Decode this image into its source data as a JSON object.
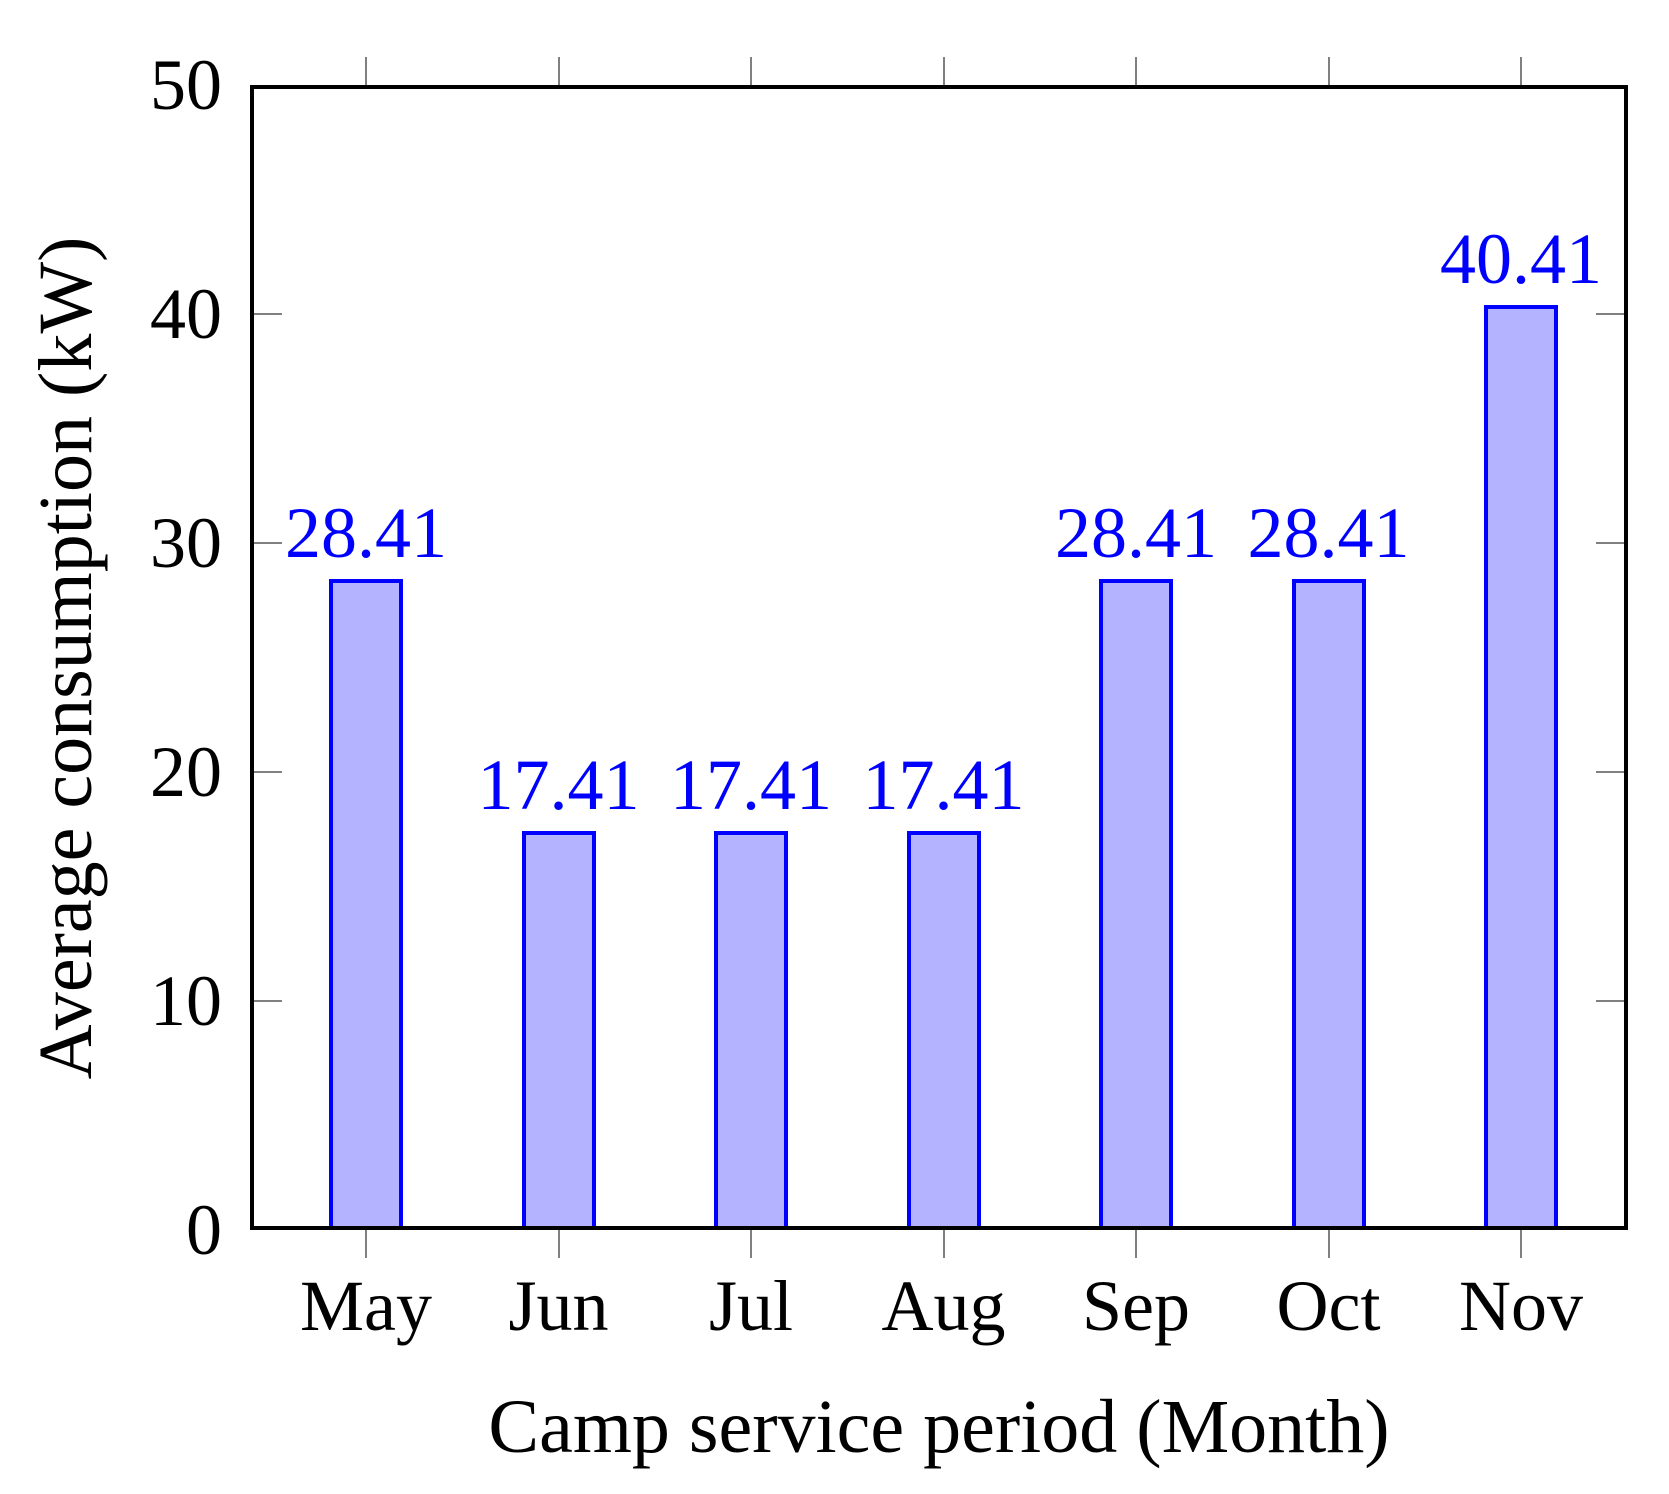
{
  "chart_data": {
    "type": "bar",
    "title": "",
    "xlabel": "Camp service period (Month)",
    "ylabel": "Average consumption (kW)",
    "categories": [
      "May",
      "Jun",
      "Jul",
      "Aug",
      "Sep",
      "Oct",
      "Nov"
    ],
    "values": [
      28.41,
      17.41,
      17.41,
      17.41,
      28.41,
      28.41,
      40.41
    ],
    "value_labels": [
      "28.41",
      "17.41",
      "17.41",
      "17.41",
      "28.41",
      "28.41",
      "40.41"
    ],
    "ylim": [
      0,
      50
    ],
    "yticks": [
      0,
      10,
      20,
      30,
      40,
      50
    ],
    "ytick_labels": [
      "0",
      "10",
      "20",
      "30",
      "40",
      "50"
    ],
    "grid": false,
    "legend_position": "none",
    "colors": {
      "bar_fill": "#b3b3ff",
      "bar_border": "#0000ff",
      "value_label": "#0000ff",
      "axis": "#000000",
      "tick": "#808080",
      "text": "#000000",
      "background": "#ffffff"
    }
  }
}
